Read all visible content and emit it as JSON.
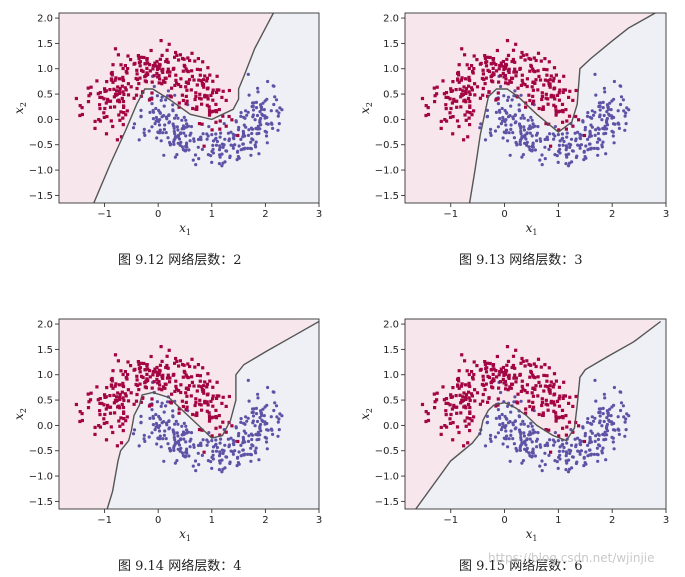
{
  "chart_data": [
    {
      "type": "scatter",
      "caption": "图  9.12  网络层数：2",
      "xlabel": "x",
      "xlabel_sub": "1",
      "ylabel": "x",
      "ylabel_sub": "2",
      "xlim": [
        -1.85,
        3.0
      ],
      "ylim": [
        -1.65,
        2.1
      ],
      "xticks": [
        -1,
        0,
        1,
        2,
        3
      ],
      "yticks": [
        2.0,
        1.5,
        1.0,
        0.5,
        0.0,
        -0.5,
        -1.0,
        -1.5
      ],
      "boundary": [
        [
          -1.2,
          -1.65
        ],
        [
          -0.9,
          -0.9
        ],
        [
          -0.6,
          -0.2
        ],
        [
          -0.4,
          0.3
        ],
        [
          -0.25,
          0.6
        ],
        [
          -0.1,
          0.6
        ],
        [
          0.2,
          0.4
        ],
        [
          0.6,
          0.1
        ],
        [
          1.0,
          0.0
        ],
        [
          1.4,
          0.2
        ],
        [
          1.5,
          0.4
        ],
        [
          1.5,
          0.6
        ],
        [
          1.6,
          0.85
        ],
        [
          1.8,
          1.4
        ],
        [
          2.0,
          1.8
        ],
        [
          2.15,
          2.1
        ]
      ]
    },
    {
      "type": "scatter",
      "caption": "图  9.13  网络层数：3",
      "xlabel": "x",
      "xlabel_sub": "1",
      "ylabel": "x",
      "ylabel_sub": "2",
      "xlim": [
        -1.85,
        3.0
      ],
      "ylim": [
        -1.65,
        2.1
      ],
      "xticks": [
        -1,
        0,
        1,
        2,
        3
      ],
      "yticks": [
        2.0,
        1.5,
        1.0,
        0.5,
        0.0,
        -0.5,
        -1.0,
        -1.5
      ],
      "boundary": [
        [
          -0.65,
          -1.65
        ],
        [
          -0.55,
          -1.0
        ],
        [
          -0.45,
          -0.3
        ],
        [
          -0.35,
          0.2
        ],
        [
          -0.3,
          0.45
        ],
        [
          -0.15,
          0.6
        ],
        [
          0.05,
          0.6
        ],
        [
          0.25,
          0.45
        ],
        [
          0.6,
          0.1
        ],
        [
          1.0,
          -0.25
        ],
        [
          1.25,
          -0.05
        ],
        [
          1.35,
          0.3
        ],
        [
          1.4,
          1.0
        ],
        [
          1.6,
          1.2
        ],
        [
          2.0,
          1.55
        ],
        [
          2.3,
          1.8
        ],
        [
          2.8,
          2.1
        ]
      ]
    },
    {
      "type": "scatter",
      "caption": "图  9.14  网络层数：4",
      "xlabel": "x",
      "xlabel_sub": "1",
      "ylabel": "x",
      "ylabel_sub": "2",
      "xlim": [
        -1.85,
        3.0
      ],
      "ylim": [
        -1.65,
        2.1
      ],
      "xticks": [
        -1,
        0,
        1,
        2,
        3
      ],
      "yticks": [
        2.0,
        1.5,
        1.0,
        0.5,
        0.0,
        -0.5,
        -1.0,
        -1.5
      ],
      "boundary": [
        [
          -0.95,
          -1.65
        ],
        [
          -0.85,
          -1.3
        ],
        [
          -0.75,
          -0.7
        ],
        [
          -0.7,
          -0.5
        ],
        [
          -0.55,
          -0.3
        ],
        [
          -0.5,
          -0.1
        ],
        [
          -0.45,
          0.2
        ],
        [
          -0.35,
          0.4
        ],
        [
          -0.3,
          0.6
        ],
        [
          -0.1,
          0.65
        ],
        [
          0.2,
          0.55
        ],
        [
          0.5,
          0.25
        ],
        [
          0.8,
          -0.05
        ],
        [
          1.0,
          -0.25
        ],
        [
          1.2,
          -0.2
        ],
        [
          1.35,
          0.1
        ],
        [
          1.45,
          0.5
        ],
        [
          1.45,
          1.0
        ],
        [
          1.6,
          1.2
        ],
        [
          2.0,
          1.45
        ],
        [
          2.5,
          1.75
        ],
        [
          3.0,
          2.05
        ]
      ]
    },
    {
      "type": "scatter",
      "caption": "图  9.15  网络层数：6",
      "xlabel": "x",
      "xlabel_sub": "1",
      "ylabel": "x",
      "ylabel_sub": "2",
      "xlim": [
        -1.85,
        3.0
      ],
      "ylim": [
        -1.65,
        2.1
      ],
      "xticks": [
        -1,
        0,
        1,
        2,
        3
      ],
      "yticks": [
        2.0,
        1.5,
        1.0,
        0.5,
        0.0,
        -0.5,
        -1.0,
        -1.5
      ],
      "boundary": [
        [
          -1.65,
          -1.65
        ],
        [
          -1.0,
          -0.7
        ],
        [
          -0.6,
          -0.35
        ],
        [
          -0.45,
          -0.15
        ],
        [
          -0.4,
          0.1
        ],
        [
          -0.3,
          0.3
        ],
        [
          -0.2,
          0.4
        ],
        [
          0.0,
          0.45
        ],
        [
          0.2,
          0.35
        ],
        [
          0.4,
          0.2
        ],
        [
          0.6,
          0.0
        ],
        [
          0.9,
          -0.2
        ],
        [
          1.15,
          -0.3
        ],
        [
          1.3,
          -0.05
        ],
        [
          1.35,
          0.4
        ],
        [
          1.4,
          0.95
        ],
        [
          1.5,
          1.1
        ],
        [
          1.9,
          1.35
        ],
        [
          2.4,
          1.65
        ],
        [
          2.9,
          2.05
        ]
      ]
    }
  ],
  "colors": {
    "class0": "#a30543",
    "class1": "#5f52a6",
    "region0": "#f7e7ec",
    "region1": "#eef0f5",
    "boundary": "#555555"
  },
  "watermark": "https://blog.csdn.net/wjinjie"
}
